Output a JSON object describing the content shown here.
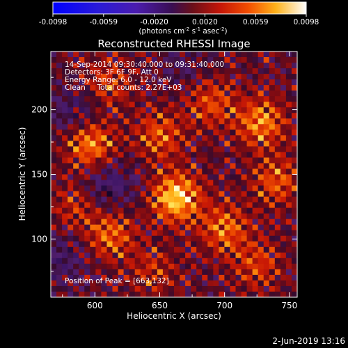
{
  "chart_data": {
    "type": "heatmap",
    "title": "Reconstructed RHESSI Image",
    "xlabel": "Heliocentric X (arcsec)",
    "ylabel": "Heliocentric Y (arcsec)",
    "xlim": [
      566,
      756
    ],
    "ylim": [
      55,
      245
    ],
    "xticks": [
      600,
      650,
      700,
      750
    ],
    "yticks": [
      100,
      150,
      200
    ],
    "colorbar": {
      "min": -0.0098,
      "max": 0.0098,
      "ticks": [
        "-0.0098",
        "-0.0059",
        "-0.0020",
        "0.0020",
        "0.0059",
        "0.0098"
      ],
      "label_main": "(photons cm",
      "label_exp1": "-2",
      "label_mid": " s",
      "label_exp2": "-1",
      "label_end": " asec",
      "label_exp3": "-2",
      "label_close": ")"
    },
    "annotations": [
      "14-Sep-2014 09:30:40.000 to 09:31:40.000",
      "Detectors: 3F 6F 9F, Att 0",
      "Energy Range: 6.0 - 12.0 keV",
      "Clean     Total counts: 2.27E+03"
    ],
    "peak_label": "Position of Peak = [663,132]",
    "peak": [
      663,
      132
    ],
    "sources": [
      {
        "x": 663,
        "y": 132,
        "amp": 1.0
      },
      {
        "x": 597,
        "y": 173,
        "amp": 0.75
      },
      {
        "x": 728,
        "y": 190,
        "amp": 0.72
      },
      {
        "x": 612,
        "y": 103,
        "amp": 0.6
      },
      {
        "x": 700,
        "y": 108,
        "amp": 0.62
      },
      {
        "x": 740,
        "y": 145,
        "amp": 0.55
      },
      {
        "x": 690,
        "y": 205,
        "amp": 0.5
      },
      {
        "x": 610,
        "y": 220,
        "amp": 0.45
      },
      {
        "x": 725,
        "y": 80,
        "amp": 0.45
      },
      {
        "x": 650,
        "y": 180,
        "amp": 0.55
      },
      {
        "x": 585,
        "y": 125,
        "amp": 0.35
      },
      {
        "x": 645,
        "y": 75,
        "amp": 0.35
      }
    ],
    "negative_regions": [
      {
        "x": 612,
        "y": 142,
        "amp": 0.6
      },
      {
        "x": 585,
        "y": 200,
        "amp": 0.45
      },
      {
        "x": 575,
        "y": 85,
        "amp": 0.45
      },
      {
        "x": 668,
        "y": 237,
        "amp": 0.3
      }
    ]
  },
  "timestamp": "2-Jun-2019 13:16"
}
